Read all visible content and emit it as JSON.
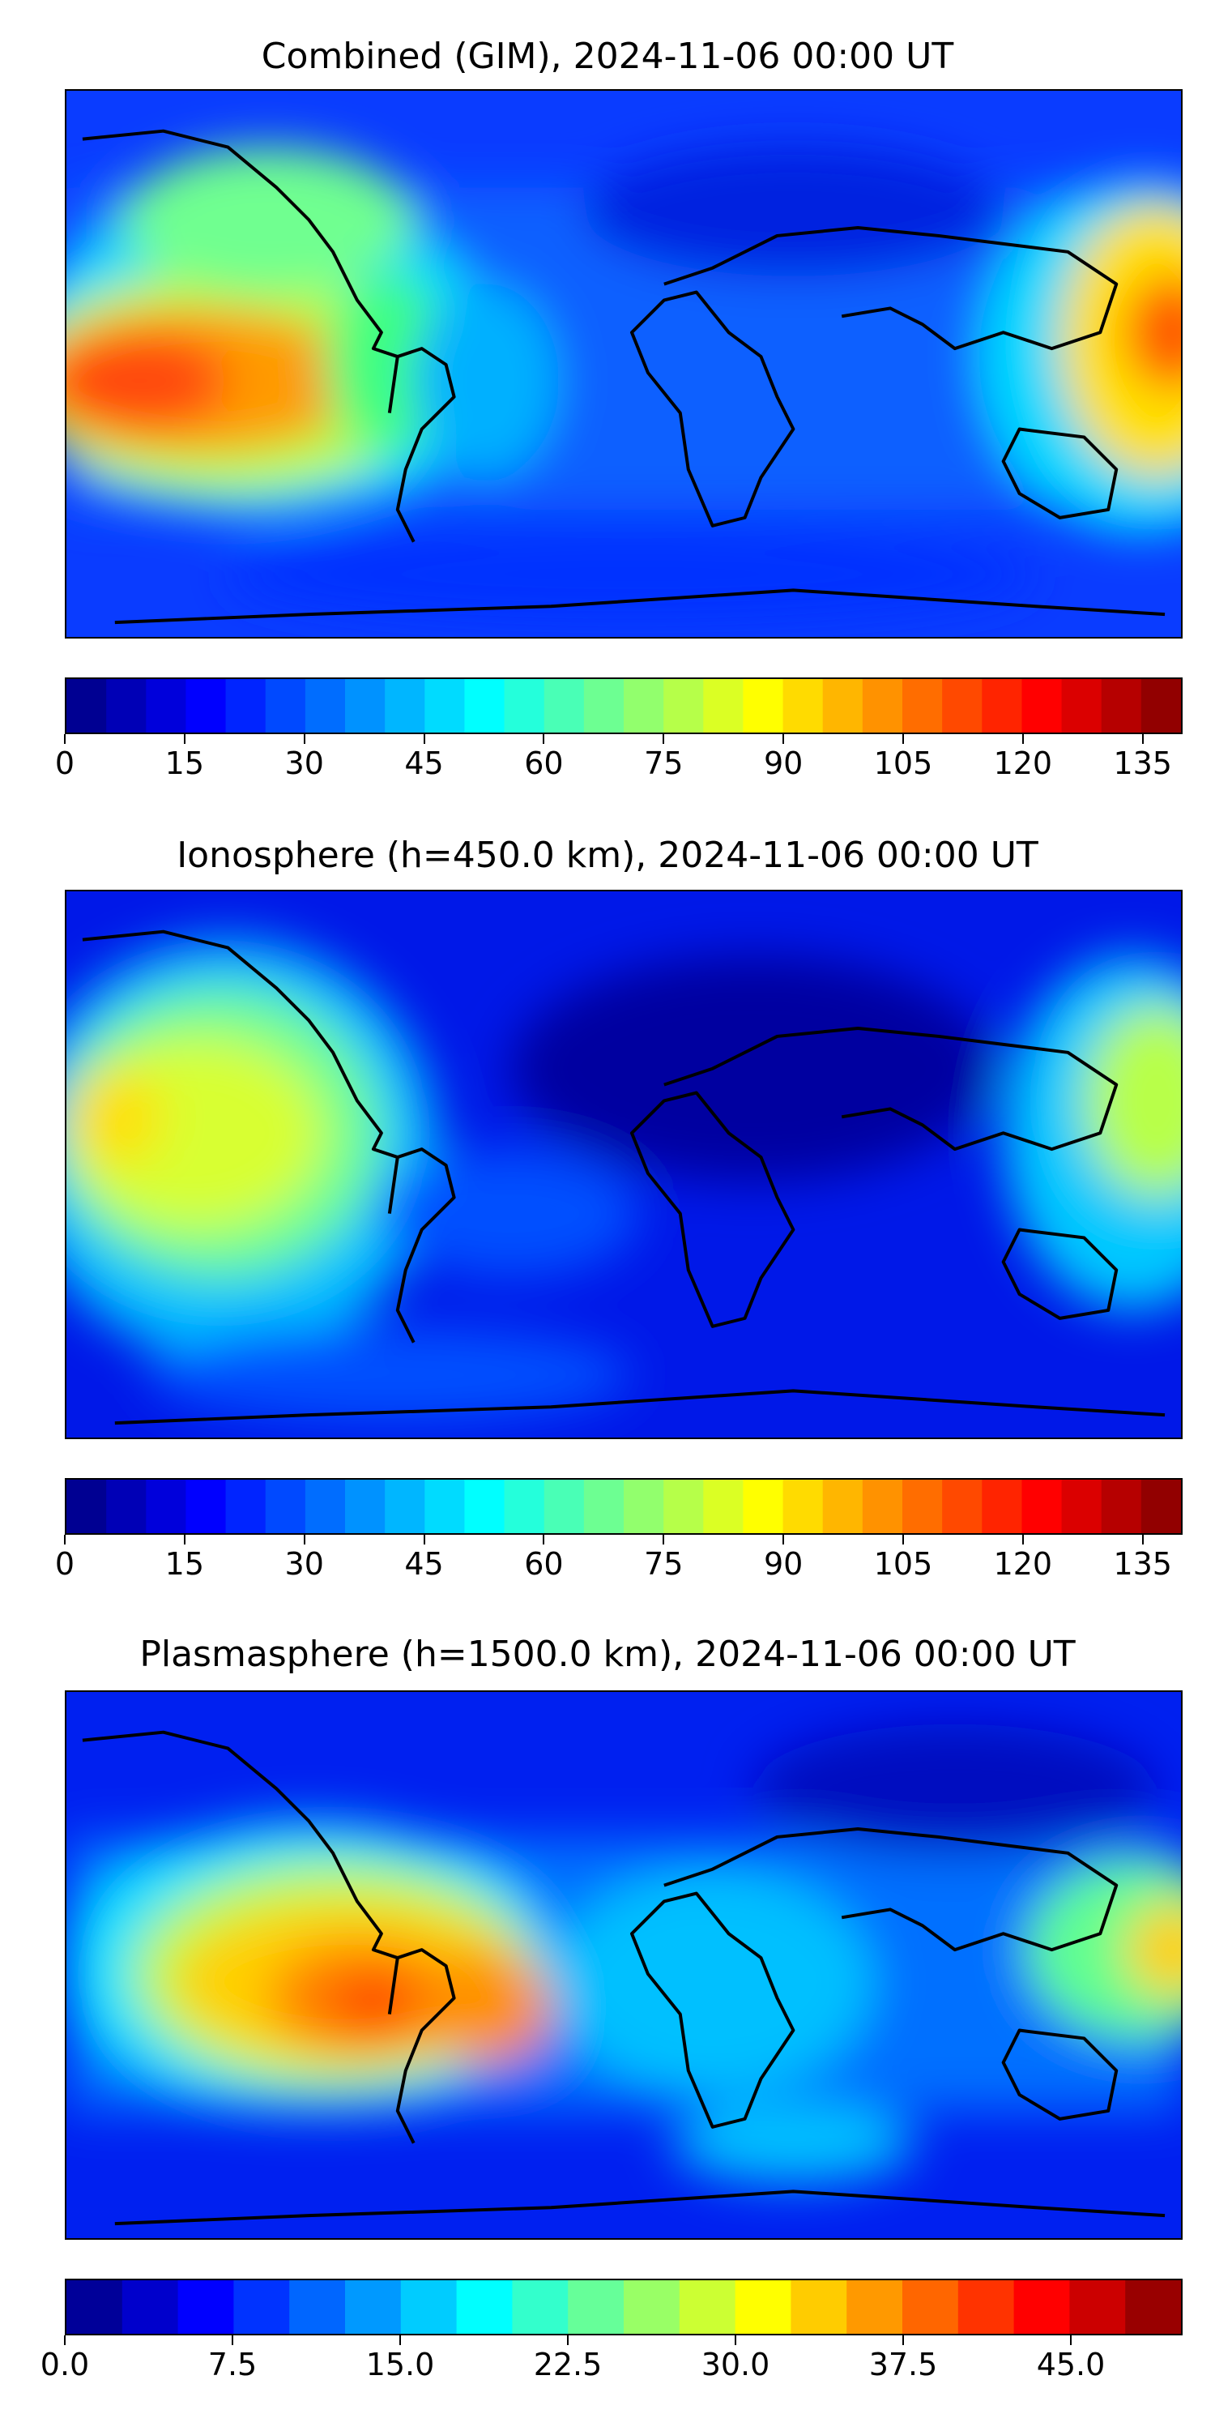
{
  "figure": {
    "panels": [
      {
        "title": "Combined (GIM), 2024-11-06 00:00 UT",
        "colorbar": {
          "min": 0,
          "max": 140,
          "levels": 28,
          "colormap": "jet",
          "tick_labels": [
            "0",
            "15",
            "30",
            "45",
            "60",
            "75",
            "90",
            "105",
            "120",
            "135"
          ],
          "tick_values": [
            0,
            15,
            30,
            45,
            60,
            75,
            90,
            105,
            120,
            135
          ]
        }
      },
      {
        "title": "Ionosphere  (h=450.0 km), 2024-11-06 00:00 UT",
        "colorbar": {
          "min": 0,
          "max": 140,
          "levels": 28,
          "colormap": "jet",
          "tick_labels": [
            "0",
            "15",
            "30",
            "45",
            "60",
            "75",
            "90",
            "105",
            "120",
            "135"
          ],
          "tick_values": [
            0,
            15,
            30,
            45,
            60,
            75,
            90,
            105,
            120,
            135
          ]
        }
      },
      {
        "title": "Plasmasphere (h=1500.0 km), 2024-11-06 00:00 UT",
        "colorbar": {
          "min": 0,
          "max": 50,
          "levels": 20,
          "colormap": "jet",
          "tick_labels": [
            "0.0",
            "7.5",
            "15.0",
            "22.5",
            "30.0",
            "37.5",
            "45.0"
          ],
          "tick_values": [
            0,
            7.5,
            15,
            22.5,
            30,
            37.5,
            45
          ]
        }
      }
    ]
  },
  "colors": {
    "jet_dark_blue": "#00008f",
    "jet_blue": "#0000ff",
    "jet_cyan": "#00ffff",
    "jet_yellow": "#ffff00",
    "jet_red": "#ff0000",
    "jet_dark_red": "#800000",
    "coastline": "#000000"
  }
}
